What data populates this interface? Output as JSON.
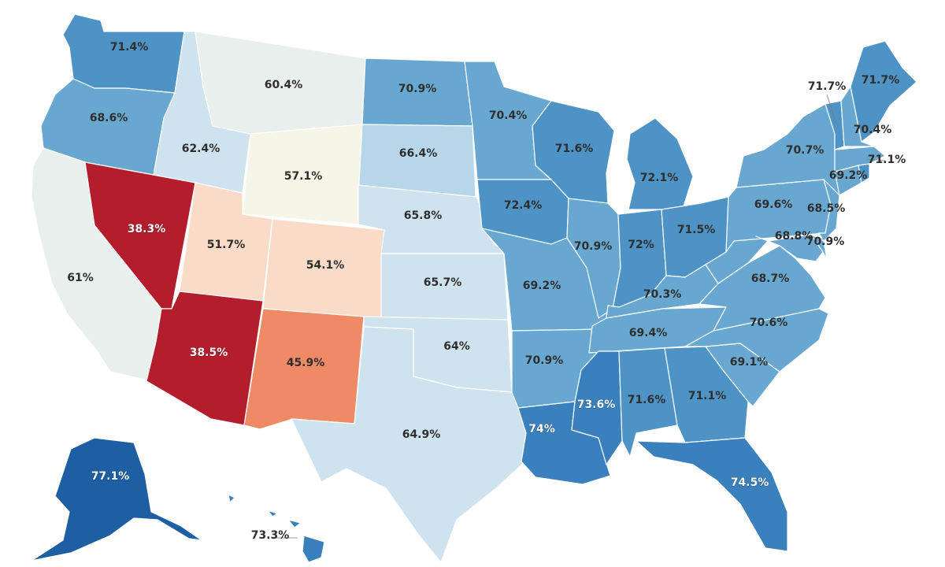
{
  "color_scale": {
    "very_low": "#b31d2c",
    "low": "#ee8b66",
    "mid_low": "#fadbc8",
    "mid": "#f7f4e8",
    "neutral": "#e8efec",
    "pale_blue": "#cfe3ef",
    "light_blue": "#b7d6e9",
    "blue": "#68a8d0",
    "mid_blue": "#4e93c6",
    "dark_blue": "#3a80bd",
    "darkest_blue": "#1d5fa2"
  },
  "states": [
    {
      "abbr": "WA",
      "value": 71.4,
      "label": "71.4%"
    },
    {
      "abbr": "OR",
      "value": 68.6,
      "label": "68.6%"
    },
    {
      "abbr": "CA",
      "value": 61,
      "label": "61%"
    },
    {
      "abbr": "ID",
      "value": 62.4,
      "label": "62.4%"
    },
    {
      "abbr": "NV",
      "value": 38.3,
      "label": "38.3%"
    },
    {
      "abbr": "MT",
      "value": 60.4,
      "label": "60.4%"
    },
    {
      "abbr": "WY",
      "value": 57.1,
      "label": "57.1%"
    },
    {
      "abbr": "UT",
      "value": 51.7,
      "label": "51.7%"
    },
    {
      "abbr": "CO",
      "value": 54.1,
      "label": "54.1%"
    },
    {
      "abbr": "AZ",
      "value": 38.5,
      "label": "38.5%"
    },
    {
      "abbr": "NM",
      "value": 45.9,
      "label": "45.9%"
    },
    {
      "abbr": "ND",
      "value": 70.9,
      "label": "70.9%"
    },
    {
      "abbr": "SD",
      "value": 66.4,
      "label": "66.4%"
    },
    {
      "abbr": "NE",
      "value": 65.8,
      "label": "65.8%"
    },
    {
      "abbr": "KS",
      "value": 65.7,
      "label": "65.7%"
    },
    {
      "abbr": "OK",
      "value": 64,
      "label": "64%"
    },
    {
      "abbr": "TX",
      "value": 64.9,
      "label": "64.9%"
    },
    {
      "abbr": "MN",
      "value": 70.4,
      "label": "70.4%"
    },
    {
      "abbr": "IA",
      "value": 72.4,
      "label": "72.4%"
    },
    {
      "abbr": "MO",
      "value": 69.2,
      "label": "69.2%"
    },
    {
      "abbr": "AR",
      "value": 70.9,
      "label": "70.9%"
    },
    {
      "abbr": "LA",
      "value": 74,
      "label": "74%"
    },
    {
      "abbr": "WI",
      "value": 71.6,
      "label": "71.6%"
    },
    {
      "abbr": "IL",
      "value": 70.9,
      "label": "70.9%"
    },
    {
      "abbr": "MI",
      "value": 72.1,
      "label": "72.1%"
    },
    {
      "abbr": "IN",
      "value": 72,
      "label": "72%"
    },
    {
      "abbr": "OH",
      "value": 71.5,
      "label": "71.5%"
    },
    {
      "abbr": "KY",
      "value": 70.3,
      "label": "70.3%"
    },
    {
      "abbr": "TN",
      "value": 69.4,
      "label": "69.4%"
    },
    {
      "abbr": "MS",
      "value": 73.6,
      "label": "73.6%"
    },
    {
      "abbr": "AL",
      "value": 71.6,
      "label": "71.6%"
    },
    {
      "abbr": "GA",
      "value": 71.1,
      "label": "71.1%"
    },
    {
      "abbr": "FL",
      "value": 74.5,
      "label": "74.5%"
    },
    {
      "abbr": "SC",
      "value": 69.1,
      "label": "69.1%"
    },
    {
      "abbr": "NC",
      "value": 70.6,
      "label": "70.6%"
    },
    {
      "abbr": "VA",
      "value": 68.7,
      "label": "68.7%"
    },
    {
      "abbr": "WV",
      "value": null,
      "label": ""
    },
    {
      "abbr": "PA",
      "value": 69.6,
      "label": "69.6%"
    },
    {
      "abbr": "NY",
      "value": 70.7,
      "label": "70.7%"
    },
    {
      "abbr": "NJ",
      "value": 68.5,
      "label": "68.5%"
    },
    {
      "abbr": "MD",
      "value": 68.8,
      "label": "68.8%"
    },
    {
      "abbr": "DE",
      "value": 70.9,
      "label": "70.9%"
    },
    {
      "abbr": "CT",
      "value": 69.2,
      "label": "69.2%"
    },
    {
      "abbr": "RI",
      "value": 71.1,
      "label": "71.1%"
    },
    {
      "abbr": "MA",
      "value": null,
      "label": ""
    },
    {
      "abbr": "VT",
      "value": 71.7,
      "label": "71.7%"
    },
    {
      "abbr": "NH",
      "value": 70.4,
      "label": "70.4%"
    },
    {
      "abbr": "ME",
      "value": 71.7,
      "label": "71.7%"
    },
    {
      "abbr": "AK",
      "value": 77.1,
      "label": "77.1%"
    },
    {
      "abbr": "HI",
      "value": 73.3,
      "label": "73.3%"
    }
  ]
}
